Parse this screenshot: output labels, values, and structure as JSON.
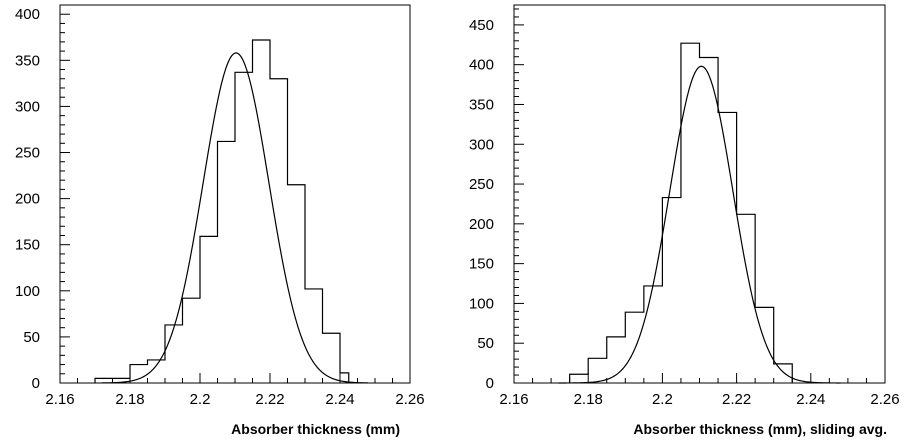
{
  "chart_data": [
    {
      "type": "bar",
      "histogram": true,
      "title": "",
      "xlabel": "Absorber thickness (mm)",
      "ylabel": "",
      "xlim": [
        2.16,
        2.26
      ],
      "ylim": [
        0,
        410
      ],
      "xticks": [
        "2.16",
        "2.18",
        "2.2",
        "2.22",
        "2.24",
        "2.26"
      ],
      "yticks": [
        "0",
        "50",
        "100",
        "150",
        "200",
        "250",
        "300",
        "350",
        "400"
      ],
      "bin_width": 0.0025,
      "bin_starts": [
        2.17,
        2.1725,
        2.175,
        2.1775,
        2.18,
        2.1825,
        2.185,
        2.1875,
        2.19,
        2.1925,
        2.195,
        2.1975,
        2.2,
        2.2025,
        2.205,
        2.2075,
        2.21,
        2.2125,
        2.215,
        2.2175,
        2.22,
        2.2225,
        2.225,
        2.2275,
        2.23,
        2.2325,
        2.235,
        2.2375,
        2.24
      ],
      "values": [
        5,
        5,
        5,
        5,
        20,
        20,
        25,
        25,
        63,
        63,
        92,
        92,
        159,
        159,
        262,
        262,
        337,
        337,
        372,
        372,
        330,
        330,
        215,
        215,
        102,
        102,
        54,
        54,
        11
      ],
      "fit": {
        "type": "gaussian",
        "amplitude": 358,
        "mean": 2.2103,
        "sigma": 0.0094
      },
      "grid": false
    },
    {
      "type": "bar",
      "histogram": true,
      "title": "",
      "xlabel": "Absorber thickness (mm), sliding avg.",
      "ylabel": "",
      "xlim": [
        2.16,
        2.26
      ],
      "ylim": [
        0,
        475
      ],
      "xticks": [
        "2.16",
        "2.18",
        "2.2",
        "2.22",
        "2.24",
        "2.26"
      ],
      "yticks": [
        "0",
        "50",
        "100",
        "150",
        "200",
        "250",
        "300",
        "350",
        "400",
        "450"
      ],
      "bin_width": 0.0025,
      "bin_starts": [
        2.175,
        2.1775,
        2.18,
        2.1825,
        2.185,
        2.1875,
        2.19,
        2.1925,
        2.195,
        2.1975,
        2.2,
        2.2025,
        2.205,
        2.2075,
        2.21,
        2.2125,
        2.215,
        2.2175,
        2.22,
        2.2225,
        2.225,
        2.2275,
        2.23,
        2.2325
      ],
      "values": [
        11,
        11,
        31,
        31,
        58,
        58,
        89,
        89,
        122,
        122,
        233,
        233,
        427,
        427,
        409,
        409,
        340,
        340,
        212,
        212,
        95,
        95,
        24,
        24
      ],
      "fit": {
        "type": "gaussian",
        "amplitude": 398,
        "mean": 2.2105,
        "sigma": 0.0085
      },
      "grid": false
    }
  ]
}
